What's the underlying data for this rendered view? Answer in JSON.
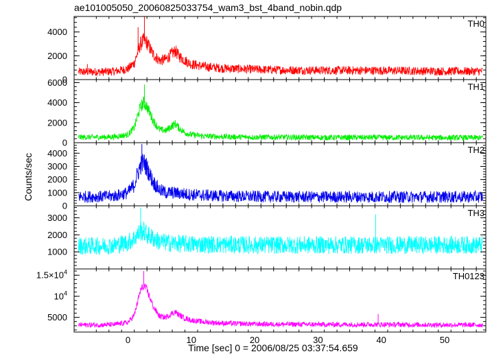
{
  "chart_data": {
    "type": "line",
    "title": "ae101005050_20060825033754_wam3_bst_4band_nobin.qdp",
    "xlabel": "Time [sec] 0 = 2006/08/25 03:37:54.659",
    "ylabel": "Counts/sec",
    "xlim": [
      -8.5,
      56.5
    ],
    "x_ticks": [
      {
        "value": 0,
        "label": "0"
      },
      {
        "value": 10,
        "label": "10"
      },
      {
        "value": 20,
        "label": "20"
      },
      {
        "value": 30,
        "label": "30"
      },
      {
        "value": 40,
        "label": "40"
      },
      {
        "value": 50,
        "label": "50"
      }
    ],
    "series": [
      {
        "name": "TH0",
        "color": "#ff0000",
        "ylim": [
          0,
          5300
        ],
        "y_ticks": [
          {
            "value": 0,
            "label": "0"
          },
          {
            "value": 2000,
            "label": "2000"
          },
          {
            "value": 4000,
            "label": "4000"
          }
        ],
        "x": [
          -8,
          -4,
          -2,
          0,
          1,
          1.5,
          2,
          2.5,
          3,
          3.5,
          4,
          5,
          6,
          7,
          7.5,
          8,
          9,
          10,
          12,
          15,
          20,
          25,
          30,
          40,
          50,
          56
        ],
        "y": [
          650,
          650,
          700,
          900,
          1400,
          2200,
          3000,
          3300,
          3100,
          2600,
          2100,
          1600,
          1700,
          2200,
          2400,
          2000,
          1600,
          1300,
          1100,
          950,
          850,
          800,
          780,
          760,
          700,
          700
        ],
        "noise": 350,
        "spikes": [
          [
            -6.4,
            1300
          ],
          [
            1.6,
            4400
          ],
          [
            2.6,
            5300
          ]
        ]
      },
      {
        "name": "TH1",
        "color": "#00ee00",
        "ylim": [
          0,
          6300
        ],
        "y_ticks": [
          {
            "value": 0,
            "label": "0"
          },
          {
            "value": 2000,
            "label": "2000"
          },
          {
            "value": 4000,
            "label": "4000"
          },
          {
            "value": 6000,
            "label": "6000"
          }
        ],
        "x": [
          -8,
          -4,
          -2,
          0,
          1,
          1.5,
          2,
          2.5,
          3,
          3.5,
          4,
          5,
          6,
          7,
          7.5,
          8,
          9,
          10,
          12,
          15,
          20,
          25,
          30,
          40,
          50,
          56
        ],
        "y": [
          550,
          550,
          600,
          800,
          1500,
          2600,
          3600,
          4000,
          3600,
          2900,
          2200,
          1300,
          1200,
          1700,
          1900,
          1500,
          1000,
          800,
          650,
          600,
          550,
          550,
          520,
          520,
          500,
          500
        ],
        "noise": 280,
        "spikes": [
          [
            2.6,
            5800
          ]
        ]
      },
      {
        "name": "TH2",
        "color": "#0000ee",
        "ylim": [
          0,
          4800
        ],
        "y_ticks": [
          {
            "value": 0,
            "label": "0"
          },
          {
            "value": 1000,
            "label": "1000"
          },
          {
            "value": 2000,
            "label": "2000"
          },
          {
            "value": 3000,
            "label": "3000"
          },
          {
            "value": 4000,
            "label": "4000"
          }
        ],
        "x": [
          -8,
          -4,
          -2,
          0,
          1,
          1.5,
          2,
          2.5,
          3,
          3.5,
          4,
          5,
          6,
          7,
          8,
          10,
          12,
          15,
          20,
          30,
          40,
          50,
          56
        ],
        "y": [
          700,
          700,
          750,
          1000,
          1600,
          2400,
          3100,
          3300,
          2900,
          2300,
          1800,
          1200,
          1000,
          1000,
          950,
          850,
          800,
          750,
          700,
          680,
          680,
          680,
          680
        ],
        "noise": 450,
        "spikes": [
          [
            2.2,
            4700
          ]
        ]
      },
      {
        "name": "TH3",
        "color": "#00ffff",
        "ylim": [
          0,
          3700
        ],
        "y_ticks": [
          {
            "value": 1000,
            "label": "1000"
          },
          {
            "value": 2000,
            "label": "2000"
          },
          {
            "value": 3000,
            "label": "3000"
          }
        ],
        "x": [
          -8,
          -4,
          -2,
          0,
          1,
          1.5,
          2,
          2.5,
          3,
          4,
          5,
          7,
          10,
          20,
          30,
          40,
          50,
          56
        ],
        "y": [
          1350,
          1350,
          1400,
          1550,
          1800,
          2000,
          2200,
          2200,
          2000,
          1800,
          1600,
          1500,
          1450,
          1400,
          1400,
          1400,
          1400,
          1400
        ],
        "noise": 520,
        "spikes": [
          [
            2.0,
            3600
          ],
          [
            39.1,
            3200
          ]
        ]
      },
      {
        "name": "TH0123",
        "color": "#ff00ff",
        "ylim": [
          1500,
          16500
        ],
        "y_ticks": [
          {
            "value": 5000,
            "label": "5000"
          },
          {
            "value": 10000,
            "label": "10⁴",
            "base": "10",
            "exp": "4"
          },
          {
            "value": 15000,
            "label": "1.5×10⁴",
            "base": "1.5×10",
            "exp": "4"
          }
        ],
        "x": [
          -8,
          -4,
          -2,
          0,
          1,
          1.5,
          2,
          2.5,
          3,
          3.5,
          4,
          5,
          6,
          7,
          7.5,
          8,
          9,
          10,
          12,
          15,
          20,
          30,
          40,
          50,
          56
        ],
        "y": [
          3200,
          3200,
          3300,
          3800,
          5500,
          8500,
          11500,
          12500,
          11500,
          9500,
          7500,
          5200,
          5000,
          6000,
          6300,
          5600,
          4800,
          4300,
          3900,
          3600,
          3400,
          3300,
          3300,
          3200,
          3200
        ],
        "noise": 600,
        "spikes": [
          [
            2.5,
            16000
          ],
          [
            39.5,
            5800
          ]
        ]
      }
    ]
  }
}
